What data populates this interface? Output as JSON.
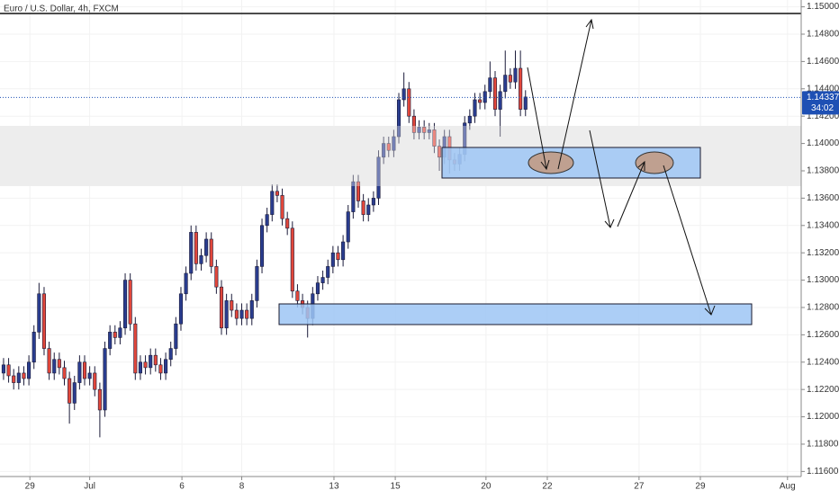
{
  "chart_data": {
    "type": "candlestick",
    "title": "Euro / U.S. Dollar, 4h, FXCM",
    "up_color": "#2a3d8f",
    "down_color": "#e2473b",
    "outline_color": "#1b1b3a",
    "ylim": [
      1.11563,
      1.1505
    ],
    "yticks": [
      {
        "value": 1.116,
        "label": "1.11600"
      },
      {
        "value": 1.118,
        "label": "1.11800"
      },
      {
        "value": 1.12,
        "label": "1.12000"
      },
      {
        "value": 1.122,
        "label": "1.12200"
      },
      {
        "value": 1.124,
        "label": "1.12400"
      },
      {
        "value": 1.126,
        "label": "1.12600"
      },
      {
        "value": 1.128,
        "label": "1.12800"
      },
      {
        "value": 1.13,
        "label": "1.13000"
      },
      {
        "value": 1.132,
        "label": "1.13200"
      },
      {
        "value": 1.134,
        "label": "1.13400"
      },
      {
        "value": 1.136,
        "label": "1.13600"
      },
      {
        "value": 1.138,
        "label": "1.13800"
      },
      {
        "value": 1.14,
        "label": "1.14000"
      },
      {
        "value": 1.142,
        "label": "1.14200"
      },
      {
        "value": 1.144,
        "label": "1.14400"
      },
      {
        "value": 1.146,
        "label": "1.14600"
      },
      {
        "value": 1.148,
        "label": "1.14800"
      },
      {
        "value": 1.15,
        "label": "1.15000"
      }
    ],
    "xlim": [
      -0.7,
      157.4
    ],
    "xticks": [
      {
        "value": 5.2,
        "label": "29"
      },
      {
        "value": 17,
        "label": "Jul"
      },
      {
        "value": 35.2,
        "label": "6"
      },
      {
        "value": 47,
        "label": "8"
      },
      {
        "value": 65.2,
        "label": "13"
      },
      {
        "value": 77.3,
        "label": "15"
      },
      {
        "value": 95.2,
        "label": "20"
      },
      {
        "value": 107.3,
        "label": "22"
      },
      {
        "value": 125.4,
        "label": "27"
      },
      {
        "value": 137.5,
        "label": "29"
      },
      {
        "value": 154.7,
        "label": "Aug"
      }
    ],
    "last_price": 1.14337,
    "countdown": "34:02",
    "open": [
      1.1232,
      1.1238,
      1.123,
      1.1225,
      1.1232,
      1.1228,
      1.124,
      1.1262,
      1.129,
      1.125,
      1.1232,
      1.1242,
      1.1236,
      1.1228,
      1.121,
      1.1225,
      1.124,
      1.1228,
      1.1232,
      1.122,
      1.1205,
      1.125,
      1.1262,
      1.1258,
      1.1265,
      1.13,
      1.1268,
      1.1232,
      1.124,
      1.1236,
      1.1245,
      1.1238,
      1.1232,
      1.1242,
      1.125,
      1.1268,
      1.129,
      1.1305,
      1.1335,
      1.1312,
      1.1318,
      1.133,
      1.131,
      1.1295,
      1.1265,
      1.1285,
      1.1278,
      1.1272,
      1.1278,
      1.1272,
      1.1285,
      1.131,
      1.134,
      1.1348,
      1.1365,
      1.1362,
      1.1345,
      1.1338,
      1.1292,
      1.1285,
      1.128,
      1.1272,
      1.129,
      1.1298,
      1.1302,
      1.131,
      1.132,
      1.1315,
      1.1328,
      1.135,
      1.1372,
      1.1358,
      1.1348,
      1.1355,
      1.136,
      1.139,
      1.14,
      1.1395,
      1.1405,
      1.1432,
      1.144,
      1.142,
      1.1408,
      1.1412,
      1.1408,
      1.141,
      1.1398,
      1.139,
      1.1405,
      1.1388,
      1.1385,
      1.1392,
      1.1415,
      1.142,
      1.1432,
      1.143,
      1.1438,
      1.1448,
      1.1425,
      1.1438,
      1.145,
      1.1445,
      1.1455,
      1.1425
    ],
    "high": [
      1.1243,
      1.1243,
      1.1235,
      1.1237,
      1.1237,
      1.1245,
      1.1267,
      1.1298,
      1.1295,
      1.1255,
      1.1247,
      1.1247,
      1.1241,
      1.1233,
      1.123,
      1.1245,
      1.1245,
      1.1237,
      1.1237,
      1.1225,
      1.1255,
      1.1267,
      1.1267,
      1.127,
      1.1305,
      1.1305,
      1.1273,
      1.1245,
      1.1245,
      1.125,
      1.125,
      1.1243,
      1.1247,
      1.1255,
      1.1273,
      1.1295,
      1.131,
      1.134,
      1.134,
      1.1323,
      1.1335,
      1.1335,
      1.1315,
      1.13,
      1.129,
      1.129,
      1.1283,
      1.1283,
      1.1283,
      1.129,
      1.1315,
      1.1345,
      1.1353,
      1.137,
      1.137,
      1.1367,
      1.135,
      1.1343,
      1.1297,
      1.129,
      1.1285,
      1.1295,
      1.1303,
      1.1307,
      1.1315,
      1.1325,
      1.1325,
      1.1333,
      1.1355,
      1.1377,
      1.1377,
      1.1363,
      1.136,
      1.1365,
      1.1395,
      1.1405,
      1.1405,
      1.141,
      1.1437,
      1.1452,
      1.1445,
      1.1425,
      1.1417,
      1.1417,
      1.1415,
      1.1415,
      1.1403,
      1.141,
      1.141,
      1.1393,
      1.1397,
      1.142,
      1.1425,
      1.1437,
      1.1437,
      1.1443,
      1.146,
      1.1453,
      1.1443,
      1.1468,
      1.1455,
      1.1468,
      1.1468,
      1.1439
    ],
    "low": [
      1.1227,
      1.1225,
      1.122,
      1.122,
      1.1223,
      1.1223,
      1.1235,
      1.1257,
      1.1245,
      1.1227,
      1.1227,
      1.1231,
      1.1223,
      1.1195,
      1.1205,
      1.122,
      1.1223,
      1.1223,
      1.1215,
      1.1185,
      1.12,
      1.1245,
      1.1253,
      1.1253,
      1.126,
      1.1263,
      1.1227,
      1.1227,
      1.1231,
      1.1231,
      1.1233,
      1.1227,
      1.1227,
      1.1237,
      1.1245,
      1.1263,
      1.1285,
      1.13,
      1.1307,
      1.1307,
      1.1313,
      1.1305,
      1.129,
      1.126,
      1.126,
      1.1273,
      1.1267,
      1.1267,
      1.1267,
      1.1267,
      1.128,
      1.1305,
      1.1335,
      1.1343,
      1.1357,
      1.134,
      1.1333,
      1.1287,
      1.128,
      1.1275,
      1.1258,
      1.1267,
      1.1285,
      1.1293,
      1.1297,
      1.1305,
      1.131,
      1.131,
      1.1323,
      1.1345,
      1.1353,
      1.1343,
      1.1343,
      1.135,
      1.1355,
      1.1385,
      1.139,
      1.139,
      1.14,
      1.1427,
      1.1415,
      1.1403,
      1.1403,
      1.1403,
      1.1403,
      1.1393,
      1.138,
      1.1385,
      1.1378,
      1.138,
      1.138,
      1.1387,
      1.141,
      1.1415,
      1.1425,
      1.1425,
      1.1433,
      1.142,
      1.1405,
      1.1433,
      1.144,
      1.144,
      1.142,
      1.142
    ],
    "close": [
      1.1238,
      1.123,
      1.1225,
      1.1232,
      1.1228,
      1.124,
      1.1262,
      1.129,
      1.125,
      1.1232,
      1.1242,
      1.1236,
      1.1228,
      1.121,
      1.1225,
      1.124,
      1.1228,
      1.1232,
      1.122,
      1.1205,
      1.125,
      1.1262,
      1.1258,
      1.1265,
      1.13,
      1.1268,
      1.1232,
      1.124,
      1.1236,
      1.1245,
      1.1238,
      1.1232,
      1.1242,
      1.125,
      1.1268,
      1.129,
      1.1305,
      1.1335,
      1.1312,
      1.1318,
      1.133,
      1.131,
      1.1295,
      1.1265,
      1.1285,
      1.1278,
      1.1272,
      1.1278,
      1.1272,
      1.1285,
      1.131,
      1.134,
      1.1348,
      1.1365,
      1.1362,
      1.1345,
      1.1338,
      1.1292,
      1.1285,
      1.128,
      1.1272,
      1.129,
      1.1298,
      1.1302,
      1.131,
      1.132,
      1.1315,
      1.1328,
      1.135,
      1.1372,
      1.1358,
      1.1348,
      1.1355,
      1.136,
      1.139,
      1.14,
      1.1395,
      1.1405,
      1.1432,
      1.144,
      1.142,
      1.1408,
      1.1412,
      1.1408,
      1.141,
      1.1398,
      1.139,
      1.1405,
      1.1388,
      1.1385,
      1.1392,
      1.1415,
      1.142,
      1.1432,
      1.143,
      1.1438,
      1.1448,
      1.1425,
      1.1438,
      1.145,
      1.1445,
      1.1455,
      1.1425,
      1.1434
    ]
  }
}
